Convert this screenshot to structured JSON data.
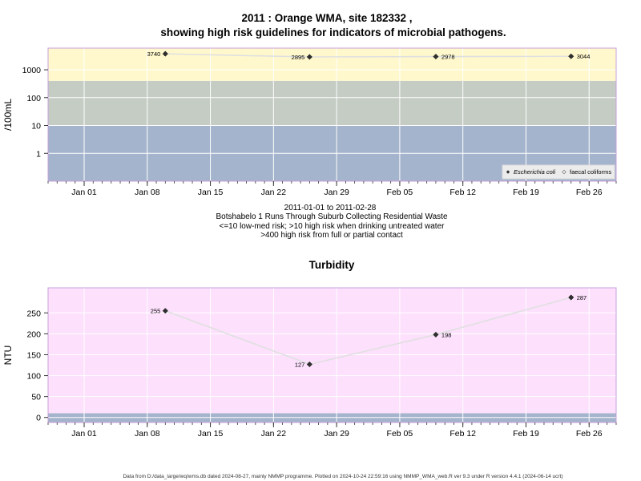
{
  "title_line1": "2011 : Orange WMA, site 182332 ,",
  "title_line2": "showing high risk guidelines for indicators of microbial pathogens.",
  "subtitle_lines": [
    "2011-01-01 to 2011-02-28",
    "Botshabelo 1 Runs Through Suburb Collecting Residential Waste",
    "<=10 low-med risk; >10 high risk when drinking untreated water",
    ">400 high risk from full or partial contact"
  ],
  "footer": "Data from D:/data_large/wq/wms.db dated 2024-08-27, mainly NMMP programme. Plotted on 2024-10-24 22:59:16 using NMMP_WMA_web.R ver 9.3 under R version 4.4.1 (2024-06-14 ucrt)",
  "colors": {
    "low_band": "#a4b4cc",
    "mid_band": "#c4ccc4",
    "high_band": "#fff8cc",
    "turbidity_bg": "#fce0fc",
    "frame": "#c8a0dc",
    "line": "#e0e0e0",
    "marker": "#303030"
  },
  "chart_data": [
    {
      "type": "line",
      "title": "",
      "ylabel": "/100mL",
      "yscale": "log",
      "ylim": [
        0.1,
        6000
      ],
      "y_ticks": [
        1,
        10,
        100,
        1000
      ],
      "y_tick_labels": [
        "1",
        "10",
        "100",
        "1000"
      ],
      "xlim": [
        "2010-12-28",
        "2011-03-01"
      ],
      "x_ticks": [
        "2011-01-01",
        "2011-01-08",
        "2011-01-15",
        "2011-01-22",
        "2011-01-29",
        "2011-02-05",
        "2011-02-12",
        "2011-02-19",
        "2011-02-26"
      ],
      "x_tick_labels": [
        "Jan 01",
        "Jan 08",
        "Jan 15",
        "Jan 22",
        "Jan 29",
        "Feb 05",
        "Feb 12",
        "Feb 19",
        "Feb 26"
      ],
      "bands": [
        {
          "from": 0.1,
          "to": 10,
          "color": "#a4b4cc"
        },
        {
          "from": 10,
          "to": 400,
          "color": "#c4ccc4"
        },
        {
          "from": 400,
          "to": 6000,
          "color": "#fff8cc"
        }
      ],
      "legend": {
        "position": "bottom-right",
        "entries": [
          "Escherichia coli",
          "faecal coliforms"
        ]
      },
      "series": [
        {
          "name": "Escherichia coli",
          "x": [
            "2011-01-10",
            "2011-01-26",
            "2011-02-09",
            "2011-02-24"
          ],
          "values": [
            3740,
            2895,
            2978,
            3044
          ],
          "labels": [
            "3740",
            "2895",
            "2978",
            "3044"
          ]
        }
      ]
    },
    {
      "type": "line",
      "title": "Turbidity",
      "ylabel": "NTU",
      "ylim": [
        -12,
        310
      ],
      "y_ticks": [
        0,
        50,
        100,
        150,
        200,
        250
      ],
      "y_tick_labels": [
        "0",
        "50",
        "100",
        "150",
        "200",
        "250"
      ],
      "xlim": [
        "2010-12-28",
        "2011-03-01"
      ],
      "x_ticks": [
        "2011-01-01",
        "2011-01-08",
        "2011-01-15",
        "2011-01-22",
        "2011-01-29",
        "2011-02-05",
        "2011-02-12",
        "2011-02-19",
        "2011-02-26"
      ],
      "x_tick_labels": [
        "Jan 01",
        "Jan 08",
        "Jan 15",
        "Jan 22",
        "Jan 29",
        "Feb 05",
        "Feb 12",
        "Feb 19",
        "Feb 26"
      ],
      "bands": [
        {
          "from": -12,
          "to": 10,
          "color": "#a4b4cc"
        },
        {
          "from": 10,
          "to": 310,
          "color": "#fce0fc"
        }
      ],
      "series": [
        {
          "x": [
            "2011-01-10",
            "2011-01-26",
            "2011-02-09",
            "2011-02-24"
          ],
          "values": [
            255,
            127,
            198,
            287
          ],
          "labels": [
            "255",
            "127",
            "198",
            "287"
          ]
        }
      ]
    }
  ]
}
